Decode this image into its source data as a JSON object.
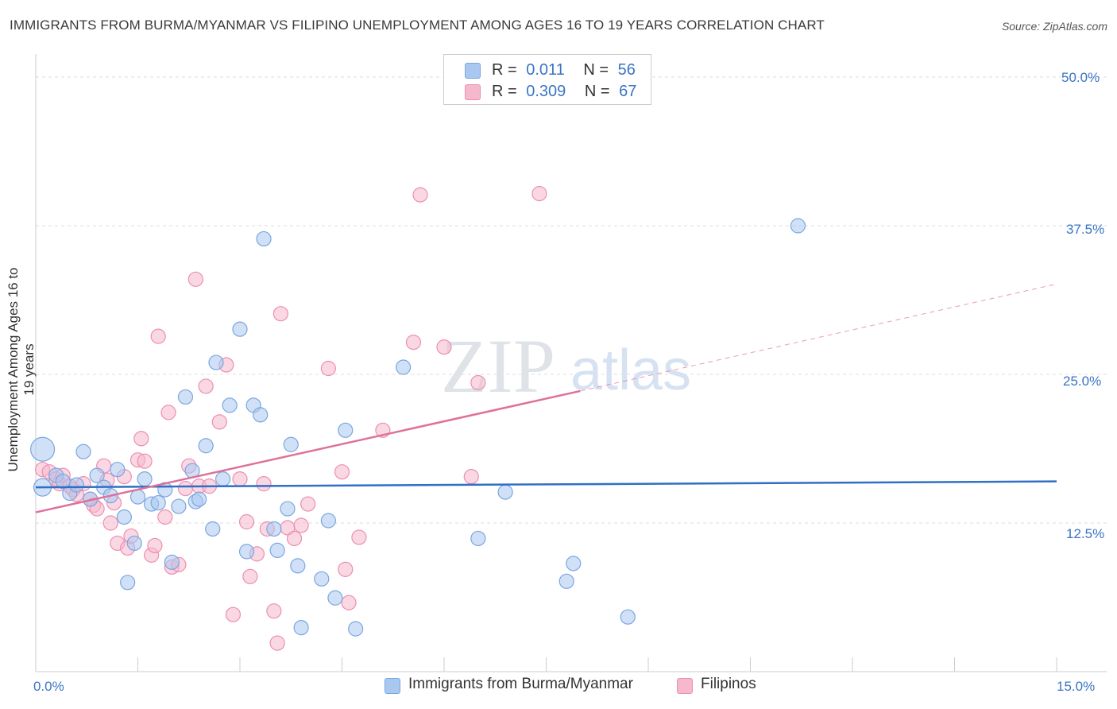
{
  "header": {
    "title": "IMMIGRANTS FROM BURMA/MYANMAR VS FILIPINO UNEMPLOYMENT AMONG AGES 16 TO 19 YEARS CORRELATION CHART",
    "source": "Source: ZipAtlas.com"
  },
  "legend": {
    "series1": {
      "r_label": "R =",
      "r_value": "0.011",
      "n_label": "N =",
      "n_value": "56"
    },
    "series2": {
      "r_label": "R =",
      "r_value": "0.309",
      "n_label": "N =",
      "n_value": "67"
    }
  },
  "watermark": {
    "zip": "ZIP",
    "atlas": "atlas"
  },
  "colors": {
    "blue_fill": "#a9c8f0",
    "blue_stroke": "#7aa6e0",
    "blue_line": "#2f6fc6",
    "pink_fill": "#f5b8cc",
    "pink_stroke": "#ec8fb0",
    "pink_line": "#e0709a",
    "axis_text": "#3a75c4"
  },
  "chart_data": {
    "type": "scatter",
    "title": "IMMIGRANTS FROM BURMA/MYANMAR VS FILIPINO UNEMPLOYMENT AMONG AGES 16 TO 19 YEARS CORRELATION CHART",
    "xlabel": "",
    "ylabel": "Unemployment Among Ages 16 to 19 years",
    "xlim": [
      0,
      15
    ],
    "ylim": [
      0,
      50
    ],
    "x_tick_labels": [
      "0.0%",
      "15.0%"
    ],
    "y_ticks": [
      12.5,
      25.0,
      37.5,
      50.0
    ],
    "y_tick_labels": [
      "12.5%",
      "25.0%",
      "37.5%",
      "50.0%"
    ],
    "legend_position": "top-center",
    "series": [
      {
        "name": "Immigrants from Burma/Myanmar",
        "color": "blue",
        "r": 0.011,
        "n": 56,
        "trend": {
          "x": [
            0,
            15
          ],
          "y": [
            15.5,
            16.0
          ]
        },
        "points": [
          [
            0.1,
            18.7
          ],
          [
            0.1,
            15.5
          ],
          [
            0.3,
            16.5
          ],
          [
            0.4,
            16.0
          ],
          [
            0.5,
            15.0
          ],
          [
            0.6,
            15.7
          ],
          [
            0.7,
            18.5
          ],
          [
            0.8,
            14.5
          ],
          [
            0.9,
            16.5
          ],
          [
            1.0,
            15.5
          ],
          [
            1.1,
            14.8
          ],
          [
            1.2,
            17.0
          ],
          [
            1.3,
            13.0
          ],
          [
            1.35,
            7.5
          ],
          [
            1.45,
            10.8
          ],
          [
            1.5,
            14.7
          ],
          [
            1.6,
            16.2
          ],
          [
            1.7,
            14.1
          ],
          [
            1.8,
            14.2
          ],
          [
            1.9,
            15.3
          ],
          [
            2.0,
            9.2
          ],
          [
            2.1,
            13.9
          ],
          [
            2.2,
            23.1
          ],
          [
            2.3,
            16.9
          ],
          [
            2.35,
            14.3
          ],
          [
            2.4,
            14.5
          ],
          [
            2.5,
            19.0
          ],
          [
            2.6,
            12.0
          ],
          [
            2.65,
            26.0
          ],
          [
            2.75,
            16.2
          ],
          [
            2.85,
            22.4
          ],
          [
            3.0,
            28.8
          ],
          [
            3.1,
            10.1
          ],
          [
            3.2,
            22.4
          ],
          [
            3.3,
            21.6
          ],
          [
            3.35,
            36.4
          ],
          [
            3.5,
            12.0
          ],
          [
            3.55,
            10.2
          ],
          [
            3.7,
            13.7
          ],
          [
            3.75,
            19.1
          ],
          [
            3.85,
            8.9
          ],
          [
            3.9,
            3.7
          ],
          [
            4.2,
            7.8
          ],
          [
            4.3,
            12.7
          ],
          [
            4.4,
            6.2
          ],
          [
            4.55,
            20.3
          ],
          [
            4.7,
            3.6
          ],
          [
            5.4,
            25.6
          ],
          [
            6.5,
            11.2
          ],
          [
            6.9,
            15.1
          ],
          [
            7.8,
            7.6
          ],
          [
            7.9,
            9.1
          ],
          [
            8.7,
            4.6
          ],
          [
            11.2,
            37.5
          ]
        ]
      },
      {
        "name": "Filipinos",
        "color": "pink",
        "r": 0.309,
        "n": 67,
        "trend": {
          "x": [
            0,
            8.0
          ],
          "y": [
            13.4,
            23.6
          ]
        },
        "trend_ext": {
          "x": [
            8.0,
            15
          ],
          "y": [
            23.6,
            32.6
          ]
        },
        "points": [
          [
            0.1,
            17.0
          ],
          [
            0.2,
            16.8
          ],
          [
            0.3,
            16.2
          ],
          [
            0.35,
            15.8
          ],
          [
            0.4,
            16.5
          ],
          [
            0.5,
            15.6
          ],
          [
            0.55,
            15.3
          ],
          [
            0.6,
            14.9
          ],
          [
            0.7,
            15.8
          ],
          [
            0.8,
            14.5
          ],
          [
            0.85,
            14.0
          ],
          [
            0.9,
            13.7
          ],
          [
            1.0,
            17.3
          ],
          [
            1.05,
            16.1
          ],
          [
            1.1,
            12.5
          ],
          [
            1.15,
            14.2
          ],
          [
            1.2,
            10.8
          ],
          [
            1.3,
            16.4
          ],
          [
            1.35,
            10.4
          ],
          [
            1.4,
            11.4
          ],
          [
            1.5,
            17.8
          ],
          [
            1.55,
            19.6
          ],
          [
            1.6,
            17.7
          ],
          [
            1.7,
            9.8
          ],
          [
            1.75,
            10.6
          ],
          [
            1.8,
            28.2
          ],
          [
            1.9,
            13.0
          ],
          [
            1.95,
            21.8
          ],
          [
            2.0,
            8.8
          ],
          [
            2.1,
            9.0
          ],
          [
            2.2,
            15.4
          ],
          [
            2.25,
            17.3
          ],
          [
            2.35,
            33.0
          ],
          [
            2.4,
            15.6
          ],
          [
            2.5,
            24.0
          ],
          [
            2.55,
            15.6
          ],
          [
            2.7,
            21.0
          ],
          [
            2.8,
            25.8
          ],
          [
            2.9,
            4.8
          ],
          [
            3.0,
            16.2
          ],
          [
            3.1,
            12.6
          ],
          [
            3.15,
            8.0
          ],
          [
            3.25,
            9.9
          ],
          [
            3.35,
            15.8
          ],
          [
            3.4,
            12.0
          ],
          [
            3.5,
            5.1
          ],
          [
            3.55,
            2.4
          ],
          [
            3.6,
            30.1
          ],
          [
            3.7,
            12.1
          ],
          [
            3.8,
            11.2
          ],
          [
            3.9,
            12.3
          ],
          [
            4.0,
            14.1
          ],
          [
            4.3,
            25.5
          ],
          [
            4.5,
            16.8
          ],
          [
            4.55,
            8.6
          ],
          [
            4.6,
            5.8
          ],
          [
            4.75,
            11.3
          ],
          [
            5.1,
            20.3
          ],
          [
            5.55,
            27.7
          ],
          [
            5.65,
            40.1
          ],
          [
            6.0,
            27.3
          ],
          [
            6.4,
            16.4
          ],
          [
            6.5,
            24.3
          ],
          [
            7.4,
            40.2
          ]
        ]
      }
    ]
  },
  "bottom_legend": {
    "series1_label": "Immigrants from Burma/Myanmar",
    "series2_label": "Filipinos"
  }
}
